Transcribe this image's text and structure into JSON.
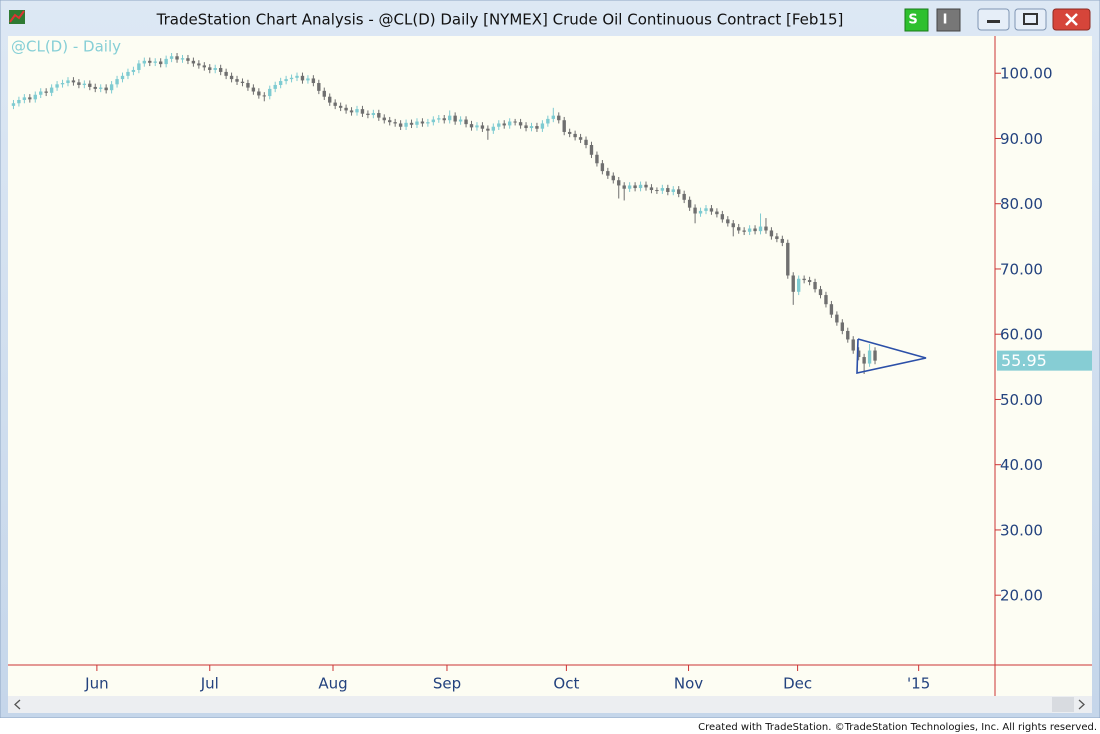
{
  "window": {
    "title": "TradeStation Chart Analysis - @CL(D) Daily [NYMEX] Crude Oil Continuous Contract [Feb15]",
    "buttons": [
      "S",
      "I"
    ]
  },
  "chart_data": {
    "type": "candlestick",
    "title": "@CL(D) - Daily",
    "ohlc": [
      [
        95.0,
        95.9,
        94.5,
        95.4
      ],
      [
        95.4,
        96.4,
        94.9,
        95.9
      ],
      [
        95.9,
        96.8,
        95.4,
        96.3
      ],
      [
        96.3,
        96.8,
        95.5,
        96.0
      ],
      [
        96.0,
        97.2,
        95.5,
        96.7
      ],
      [
        96.7,
        97.7,
        96.2,
        97.2
      ],
      [
        97.2,
        97.7,
        96.5,
        97.0
      ],
      [
        97.0,
        98.3,
        96.5,
        97.8
      ],
      [
        97.8,
        98.8,
        97.3,
        98.3
      ],
      [
        98.3,
        99.0,
        97.8,
        98.5
      ],
      [
        98.5,
        99.4,
        98.0,
        98.9
      ],
      [
        98.9,
        99.4,
        98.1,
        98.6
      ],
      [
        98.6,
        99.1,
        97.7,
        98.2
      ],
      [
        98.2,
        98.9,
        97.7,
        98.4
      ],
      [
        98.4,
        98.9,
        97.4,
        97.9
      ],
      [
        97.9,
        98.4,
        97.1,
        97.6
      ],
      [
        97.6,
        98.3,
        97.1,
        97.8
      ],
      [
        97.8,
        98.3,
        96.9,
        97.4
      ],
      [
        97.4,
        98.8,
        96.9,
        98.3
      ],
      [
        98.3,
        99.6,
        97.8,
        99.1
      ],
      [
        99.1,
        100.1,
        98.6,
        99.6
      ],
      [
        99.6,
        100.7,
        99.1,
        100.2
      ],
      [
        100.2,
        101.0,
        99.7,
        100.5
      ],
      [
        100.5,
        102.0,
        100.0,
        101.5
      ],
      [
        101.5,
        102.4,
        101.0,
        101.9
      ],
      [
        101.9,
        102.4,
        101.1,
        101.6
      ],
      [
        101.6,
        102.3,
        101.1,
        101.8
      ],
      [
        101.8,
        102.3,
        100.9,
        101.4
      ],
      [
        101.4,
        102.7,
        100.9,
        102.2
      ],
      [
        102.2,
        103.1,
        101.7,
        102.6
      ],
      [
        102.6,
        103.1,
        101.6,
        102.1
      ],
      [
        102.1,
        102.8,
        101.6,
        102.3
      ],
      [
        102.3,
        102.8,
        101.4,
        101.9
      ],
      [
        101.9,
        102.4,
        101.0,
        101.5
      ],
      [
        101.5,
        102.0,
        100.7,
        101.2
      ],
      [
        101.2,
        101.7,
        100.4,
        100.9
      ],
      [
        100.9,
        101.4,
        100.0,
        100.5
      ],
      [
        100.5,
        101.3,
        100.0,
        100.8
      ],
      [
        100.8,
        101.3,
        99.7,
        100.2
      ],
      [
        100.2,
        100.7,
        99.1,
        99.6
      ],
      [
        99.6,
        100.1,
        98.6,
        99.1
      ],
      [
        99.1,
        99.6,
        98.2,
        98.7
      ],
      [
        98.7,
        99.2,
        98.0,
        98.5
      ],
      [
        98.5,
        99.0,
        97.3,
        97.8
      ],
      [
        97.8,
        98.3,
        96.7,
        97.2
      ],
      [
        97.2,
        97.7,
        96.1,
        96.6
      ],
      [
        96.6,
        97.1,
        95.7,
        96.5
      ],
      [
        96.5,
        98.1,
        96.0,
        97.6
      ],
      [
        97.6,
        98.7,
        97.1,
        98.2
      ],
      [
        98.2,
        99.3,
        97.7,
        98.8
      ],
      [
        98.8,
        99.6,
        98.3,
        99.1
      ],
      [
        99.1,
        99.8,
        98.6,
        99.3
      ],
      [
        99.3,
        100.1,
        98.8,
        99.6
      ],
      [
        99.6,
        100.1,
        98.4,
        98.9
      ],
      [
        98.9,
        99.7,
        98.4,
        99.2
      ],
      [
        99.2,
        99.7,
        98.0,
        98.5
      ],
      [
        98.5,
        99.0,
        96.8,
        97.3
      ],
      [
        97.3,
        97.8,
        95.9,
        96.4
      ],
      [
        96.4,
        96.9,
        95.0,
        95.5
      ],
      [
        95.5,
        96.0,
        94.5,
        95.0
      ],
      [
        95.0,
        95.5,
        94.2,
        94.7
      ],
      [
        94.7,
        95.2,
        93.8,
        94.3
      ],
      [
        94.3,
        94.8,
        93.5,
        94.0
      ],
      [
        94.0,
        95.0,
        93.5,
        94.5
      ],
      [
        94.5,
        95.0,
        93.3,
        93.8
      ],
      [
        93.8,
        94.3,
        93.1,
        93.6
      ],
      [
        93.6,
        94.4,
        93.1,
        93.9
      ],
      [
        93.9,
        94.4,
        92.7,
        93.2
      ],
      [
        93.2,
        93.7,
        92.3,
        92.8
      ],
      [
        92.8,
        93.3,
        92.0,
        92.5
      ],
      [
        92.5,
        93.0,
        91.8,
        92.3
      ],
      [
        92.3,
        92.8,
        91.3,
        91.8
      ],
      [
        91.8,
        92.9,
        91.3,
        92.4
      ],
      [
        92.4,
        92.9,
        91.6,
        92.1
      ],
      [
        92.1,
        93.1,
        91.6,
        92.6
      ],
      [
        92.6,
        93.1,
        91.8,
        92.3
      ],
      [
        92.3,
        93.0,
        91.8,
        92.5
      ],
      [
        92.5,
        93.4,
        92.0,
        92.9
      ],
      [
        92.9,
        93.6,
        92.4,
        93.1
      ],
      [
        93.1,
        93.6,
        92.3,
        92.8
      ],
      [
        92.8,
        94.3,
        92.3,
        93.5
      ],
      [
        93.5,
        94.0,
        92.1,
        92.6
      ],
      [
        92.6,
        93.4,
        92.1,
        92.9
      ],
      [
        92.9,
        93.4,
        91.7,
        92.2
      ],
      [
        92.2,
        92.7,
        91.2,
        91.7
      ],
      [
        91.7,
        92.5,
        91.2,
        92.0
      ],
      [
        92.0,
        92.5,
        91.0,
        91.5
      ],
      [
        91.5,
        92.0,
        89.8,
        91.2
      ],
      [
        91.2,
        92.3,
        90.7,
        91.8
      ],
      [
        91.8,
        92.8,
        91.3,
        92.3
      ],
      [
        92.3,
        92.8,
        91.5,
        92.0
      ],
      [
        92.0,
        93.1,
        91.5,
        92.6
      ],
      [
        92.6,
        93.0,
        92.0,
        92.5
      ],
      [
        92.5,
        93.0,
        91.5,
        92.0
      ],
      [
        92.0,
        92.5,
        91.1,
        91.6
      ],
      [
        91.6,
        92.4,
        91.1,
        91.9
      ],
      [
        91.9,
        92.4,
        91.0,
        91.5
      ],
      [
        91.5,
        92.8,
        91.0,
        92.3
      ],
      [
        92.3,
        93.5,
        91.8,
        93.0
      ],
      [
        93.0,
        94.7,
        92.5,
        93.5
      ],
      [
        93.5,
        94.0,
        92.3,
        92.8
      ],
      [
        92.8,
        93.3,
        90.5,
        91.0
      ],
      [
        91.0,
        91.5,
        90.2,
        90.7
      ],
      [
        90.7,
        91.2,
        89.7,
        90.2
      ],
      [
        90.2,
        90.7,
        89.3,
        89.8
      ],
      [
        89.8,
        90.3,
        88.5,
        89.0
      ],
      [
        89.0,
        89.5,
        87.0,
        87.5
      ],
      [
        87.5,
        88.0,
        85.7,
        86.2
      ],
      [
        86.2,
        86.7,
        84.5,
        85.0
      ],
      [
        85.0,
        85.5,
        83.8,
        84.3
      ],
      [
        84.3,
        84.8,
        83.1,
        83.6
      ],
      [
        83.6,
        84.1,
        80.8,
        82.8
      ],
      [
        82.8,
        83.3,
        80.5,
        82.3
      ],
      [
        82.3,
        83.3,
        81.8,
        82.8
      ],
      [
        82.8,
        83.3,
        81.9,
        82.4
      ],
      [
        82.4,
        83.4,
        81.9,
        82.9
      ],
      [
        82.9,
        83.4,
        82.0,
        82.5
      ],
      [
        82.5,
        83.0,
        81.6,
        82.1
      ],
      [
        82.1,
        82.5,
        81.5,
        82.0
      ],
      [
        82.0,
        82.9,
        81.5,
        82.4
      ],
      [
        82.4,
        82.9,
        81.3,
        81.8
      ],
      [
        81.8,
        82.7,
        81.3,
        82.2
      ],
      [
        82.2,
        82.7,
        81.0,
        81.5
      ],
      [
        81.5,
        82.0,
        80.1,
        80.6
      ],
      [
        80.6,
        81.1,
        78.9,
        79.4
      ],
      [
        79.4,
        79.9,
        77.0,
        78.5
      ],
      [
        78.5,
        79.4,
        78.0,
        78.9
      ],
      [
        78.9,
        79.8,
        78.4,
        79.3
      ],
      [
        79.3,
        79.8,
        78.3,
        78.8
      ],
      [
        78.8,
        79.3,
        77.9,
        78.4
      ],
      [
        78.4,
        78.9,
        77.1,
        77.6
      ],
      [
        77.6,
        78.1,
        76.5,
        77.0
      ],
      [
        77.0,
        77.5,
        75.0,
        76.4
      ],
      [
        76.4,
        76.9,
        75.4,
        75.9
      ],
      [
        75.9,
        76.4,
        75.2,
        75.7
      ],
      [
        75.7,
        76.7,
        75.2,
        76.2
      ],
      [
        76.2,
        76.7,
        75.3,
        75.8
      ],
      [
        75.8,
        78.5,
        75.3,
        76.5
      ],
      [
        76.5,
        77.8,
        75.4,
        75.9
      ],
      [
        75.9,
        76.4,
        74.5,
        75.0
      ],
      [
        75.0,
        75.5,
        74.1,
        74.6
      ],
      [
        74.6,
        75.1,
        73.5,
        74.0
      ],
      [
        74.0,
        74.5,
        68.5,
        69.0
      ],
      [
        69.0,
        69.5,
        64.5,
        66.5
      ],
      [
        66.5,
        69.0,
        66.0,
        68.5
      ],
      [
        68.5,
        69.0,
        67.8,
        68.3
      ],
      [
        68.3,
        68.8,
        67.5,
        68.0
      ],
      [
        68.0,
        68.5,
        66.4,
        66.9
      ],
      [
        66.9,
        67.4,
        65.5,
        66.0
      ],
      [
        66.0,
        66.5,
        64.1,
        64.6
      ],
      [
        64.6,
        65.1,
        62.5,
        63.0
      ],
      [
        63.0,
        63.5,
        61.3,
        61.8
      ],
      [
        61.8,
        62.3,
        60.0,
        60.5
      ],
      [
        60.5,
        61.0,
        58.7,
        59.2
      ],
      [
        59.2,
        59.7,
        57.0,
        57.5
      ],
      [
        57.5,
        58.0,
        56.0,
        56.5
      ],
      [
        56.5,
        57.0,
        53.9,
        55.5
      ],
      [
        55.5,
        58.5,
        55.0,
        57.5
      ],
      [
        57.5,
        58.0,
        55.4,
        55.95
      ]
    ],
    "xlim": [
      -1,
      180
    ],
    "xticks": [
      {
        "value": 15.3,
        "label": "Jun"
      },
      {
        "value": 36,
        "label": "Jul"
      },
      {
        "value": 58.6,
        "label": "Aug"
      },
      {
        "value": 79.5,
        "label": "Sep"
      },
      {
        "value": 101.4,
        "label": "Oct"
      },
      {
        "value": 123.8,
        "label": "Nov"
      },
      {
        "value": 143.8,
        "label": "Dec"
      },
      {
        "value": 166,
        "label": "'15"
      }
    ],
    "ylim": [
      9.3,
      105.4
    ],
    "yticks": [
      {
        "value": 20,
        "label": "20.00"
      },
      {
        "value": 30,
        "label": "30.00"
      },
      {
        "value": 40,
        "label": "40.00"
      },
      {
        "value": 50,
        "label": "50.00"
      },
      {
        "value": 60,
        "label": "60.00"
      },
      {
        "value": 70,
        "label": "70.00"
      },
      {
        "value": 80,
        "label": "80.00"
      },
      {
        "value": 90,
        "label": "90.00"
      },
      {
        "value": 100,
        "label": "100.00"
      }
    ],
    "colors": {
      "up": "#7ecbd1",
      "down": "#6f6f6f",
      "axis": "#cc3333",
      "last": "#86cdd4"
    }
  },
  "footer": "Created with TradeStation. ©TradeStation Technologies, Inc. All rights reserved."
}
